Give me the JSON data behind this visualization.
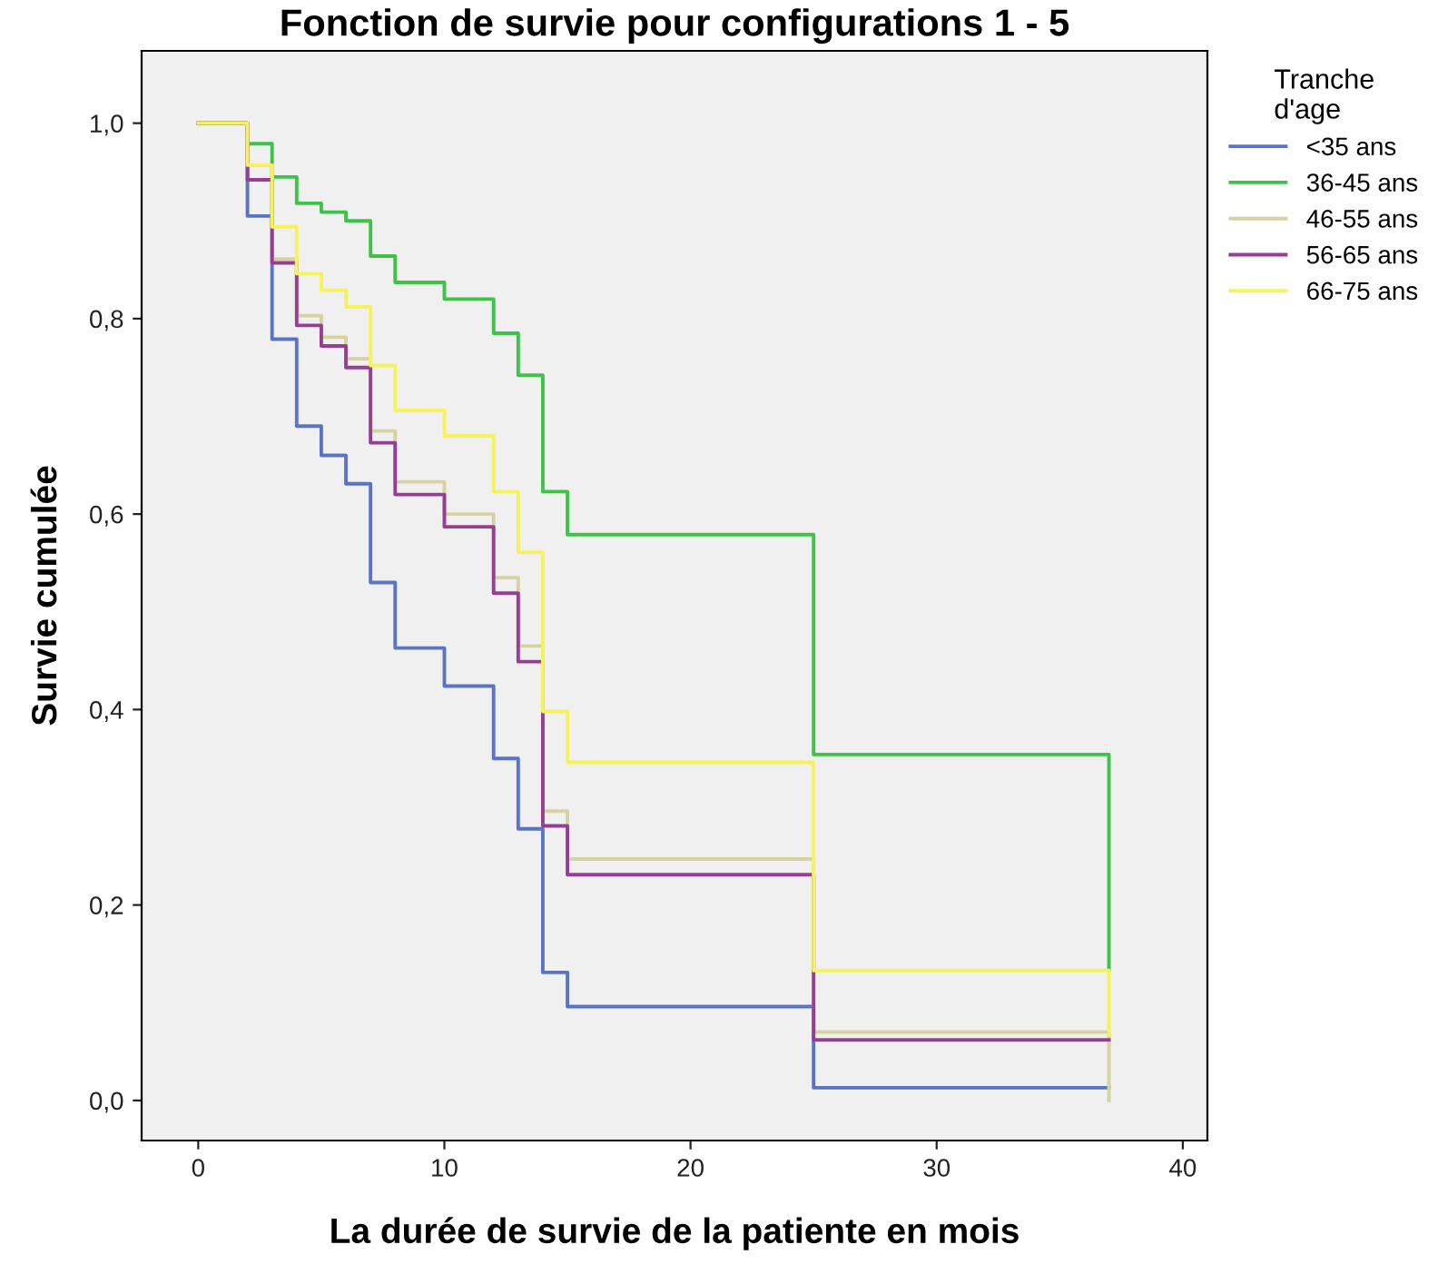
{
  "chart_data": {
    "type": "step",
    "title": "Fonction de survie pour configurations 1 - 5",
    "xlabel": "La durée de survie de la patiente en mois",
    "ylabel": "Survie cumulée",
    "legend_title": "Tranche\nd'age",
    "xlim": [
      -2.3,
      41
    ],
    "xticks": [
      0,
      10,
      20,
      30,
      40
    ],
    "ylim": [
      -0.041,
      1.074
    ],
    "yticks": [
      {
        "value": 0,
        "label": "0,0"
      },
      {
        "value": 0.2,
        "label": "0,2"
      },
      {
        "value": 0.4,
        "label": "0,4"
      },
      {
        "value": 0.6,
        "label": "0,6"
      },
      {
        "value": 0.8,
        "label": "0,8"
      },
      {
        "value": 1.0,
        "label": "1,0"
      }
    ],
    "grid": false,
    "legend": "right",
    "marker": "none",
    "line_style": "solid",
    "series": [
      {
        "name": "<35 ans",
        "color": "#5a74c4",
        "x": [
          0,
          2,
          3,
          4,
          5,
          6,
          7,
          8,
          10,
          12,
          13,
          14,
          15,
          25,
          37
        ],
        "values": [
          1.0,
          0.905,
          0.779,
          0.69,
          0.66,
          0.631,
          0.53,
          0.463,
          0.424,
          0.35,
          0.278,
          0.131,
          0.096,
          0.013,
          0.013
        ]
      },
      {
        "name": "36-45 ans",
        "color": "#3ec24a",
        "x": [
          0,
          2,
          3,
          4,
          5,
          6,
          7,
          8,
          10,
          12,
          13,
          14,
          15,
          25,
          37
        ],
        "values": [
          1.0,
          0.979,
          0.945,
          0.918,
          0.909,
          0.9,
          0.864,
          0.837,
          0.82,
          0.785,
          0.742,
          0.623,
          0.579,
          0.354,
          0.134
        ]
      },
      {
        "name": "46-55 ans",
        "color": "#d6d2a2",
        "x": [
          0,
          2,
          3,
          4,
          5,
          6,
          7,
          8,
          10,
          12,
          13,
          14,
          15,
          25,
          37
        ],
        "values": [
          1.0,
          0.957,
          0.861,
          0.803,
          0.781,
          0.759,
          0.685,
          0.633,
          0.6,
          0.535,
          0.465,
          0.296,
          0.247,
          0.07,
          0.0
        ]
      },
      {
        "name": "56-65 ans",
        "color": "#963f92",
        "x": [
          0,
          2,
          3,
          4,
          5,
          6,
          7,
          8,
          10,
          12,
          13,
          14,
          15,
          25,
          37
        ],
        "values": [
          1.0,
          0.942,
          0.857,
          0.793,
          0.772,
          0.75,
          0.673,
          0.62,
          0.587,
          0.519,
          0.449,
          0.281,
          0.231,
          0.062,
          0.062
        ]
      },
      {
        "name": "66-75 ans",
        "color": "#f5f25c",
        "x": [
          0,
          2,
          3,
          4,
          5,
          6,
          7,
          8,
          10,
          12,
          13,
          14,
          15,
          25,
          37
        ],
        "values": [
          1.0,
          0.957,
          0.894,
          0.846,
          0.829,
          0.812,
          0.752,
          0.706,
          0.68,
          0.623,
          0.561,
          0.398,
          0.346,
          0.133,
          0.067
        ]
      }
    ]
  }
}
